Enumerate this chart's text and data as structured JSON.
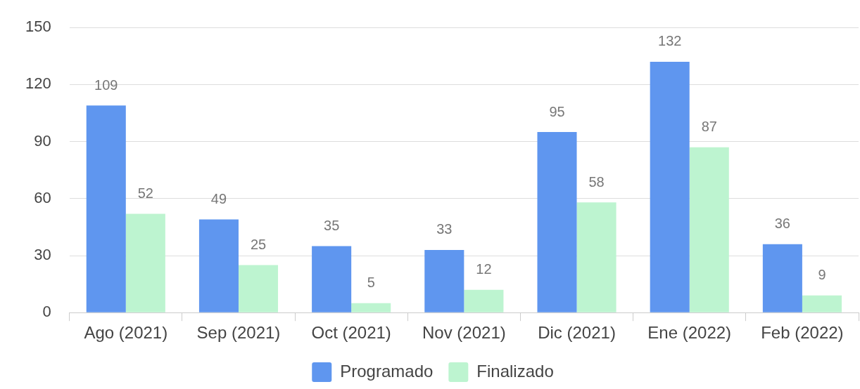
{
  "chart_data": {
    "type": "bar",
    "categories": [
      "Ago (2021)",
      "Sep (2021)",
      "Oct (2021)",
      "Nov (2021)",
      "Dic (2021)",
      "Ene (2022)",
      "Feb (2022)"
    ],
    "series": [
      {
        "name": "Programado",
        "color": "#5f96ef",
        "values": [
          109,
          49,
          35,
          33,
          95,
          132,
          36
        ]
      },
      {
        "name": "Finalizado",
        "color": "#bdf4d0",
        "values": [
          52,
          25,
          5,
          12,
          58,
          87,
          9
        ]
      }
    ],
    "ylim": [
      0,
      150
    ],
    "yticks": [
      0,
      30,
      60,
      90,
      120,
      150
    ],
    "grid": "y",
    "legend": "bottom",
    "data_labels": true
  }
}
